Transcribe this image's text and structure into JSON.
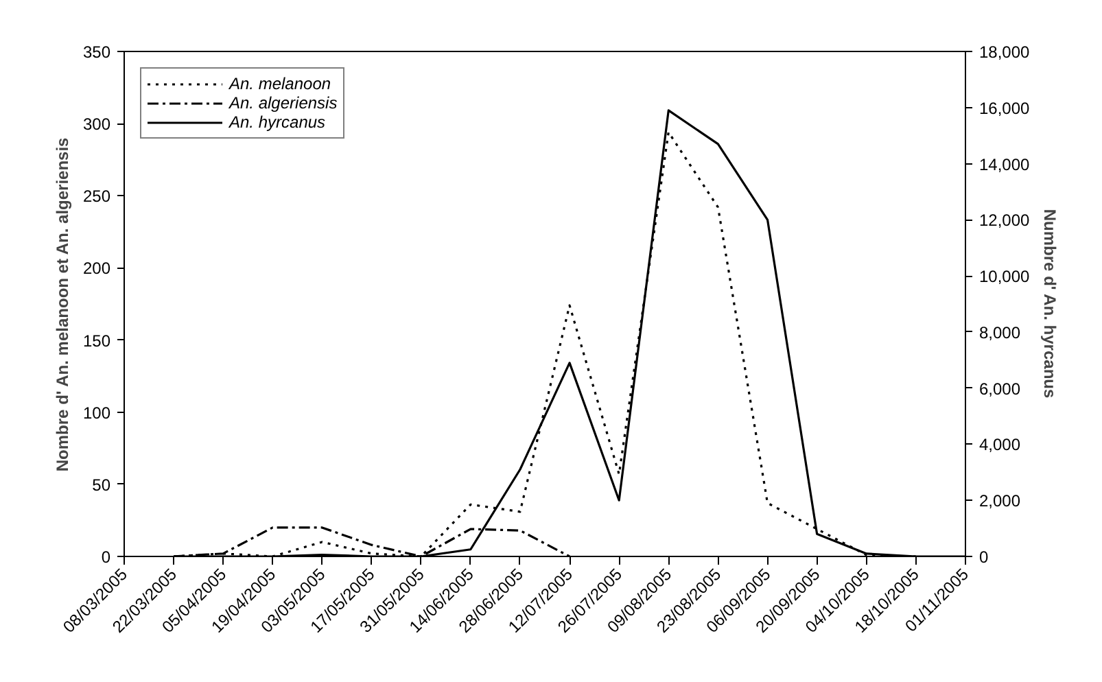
{
  "chart_data": {
    "type": "line",
    "ylabel": "Nombre d' An. melanoon et An. algeriensis",
    "y2label": "Numbre d' An. hyrcanus",
    "x": [
      "2005-03-22",
      "2005-04-05",
      "2005-04-19",
      "2005-05-03",
      "2005-05-17",
      "2005-05-31",
      "2005-06-14",
      "2005-06-28",
      "2005-07-12",
      "2005-07-26",
      "2005-08-09",
      "2005-08-23",
      "2005-09-06",
      "2005-09-20",
      "2005-10-04",
      "2005-10-18",
      "2005-11-01"
    ],
    "xlim": [
      "2005-03-08",
      "2005-11-01"
    ],
    "xticks": [
      {
        "value": "2005-03-08",
        "label": "08/03/2005"
      },
      {
        "value": "2005-03-22",
        "label": "22/03/2005"
      },
      {
        "value": "2005-04-05",
        "label": "05/04/2005"
      },
      {
        "value": "2005-04-19",
        "label": "19/04/2005"
      },
      {
        "value": "2005-05-03",
        "label": "03/05/2005"
      },
      {
        "value": "2005-05-17",
        "label": "17/05/2005"
      },
      {
        "value": "2005-05-31",
        "label": "31/05/2005"
      },
      {
        "value": "2005-06-14",
        "label": "14/06/2005"
      },
      {
        "value": "2005-06-28",
        "label": "28/06/2005"
      },
      {
        "value": "2005-07-12",
        "label": "12/07/2005"
      },
      {
        "value": "2005-07-26",
        "label": "26/07/2005"
      },
      {
        "value": "2005-08-09",
        "label": "09/08/2005"
      },
      {
        "value": "2005-08-23",
        "label": "23/08/2005"
      },
      {
        "value": "2005-09-06",
        "label": "06/09/2005"
      },
      {
        "value": "2005-09-20",
        "label": "20/09/2005"
      },
      {
        "value": "2005-10-04",
        "label": "04/10/2005"
      },
      {
        "value": "2005-10-18",
        "label": "18/10/2005"
      },
      {
        "value": "2005-11-01",
        "label": "01/11/2005"
      }
    ],
    "ylim": [
      0,
      350
    ],
    "yticks": [
      0,
      50,
      100,
      150,
      200,
      250,
      300,
      350
    ],
    "y2lim": [
      0,
      18000
    ],
    "y2ticks": [
      0,
      {
        "value": 2000,
        "label": "2,000"
      },
      {
        "value": 4000,
        "label": "4,000"
      },
      {
        "value": 6000,
        "label": "6,000"
      },
      {
        "value": 8000,
        "label": "8,000"
      },
      {
        "value": 10000,
        "label": "10,000"
      },
      {
        "value": 12000,
        "label": "12,000"
      },
      {
        "value": 14000,
        "label": "14,000"
      },
      {
        "value": 16000,
        "label": "16,000"
      },
      {
        "value": 18000,
        "label": "18,000"
      }
    ],
    "grid": false,
    "legend": "top left",
    "marker": "none",
    "series": [
      {
        "name": "An. melanoon",
        "color": "#000000",
        "line_style": "dotted",
        "values": [
          0,
          2,
          0,
          10,
          2,
          0,
          36,
          31,
          174,
          57,
          294,
          242,
          37,
          19,
          1,
          0,
          null
        ]
      },
      {
        "name": "An. algeriensis",
        "color": "#000000",
        "line_style": "dashdot",
        "values": [
          0,
          2,
          20,
          20,
          8,
          0,
          19,
          18,
          0,
          null,
          null,
          null,
          null,
          null,
          null,
          null,
          null
        ]
      },
      {
        "name": "An. hyrcanus",
        "color": "#000000",
        "line_style": "solid",
        "axis": "y2",
        "values": [
          0,
          0,
          0,
          60,
          0,
          0,
          250,
          3100,
          6900,
          2000,
          15900,
          14700,
          12000,
          800,
          100,
          0,
          0
        ]
      }
    ]
  }
}
